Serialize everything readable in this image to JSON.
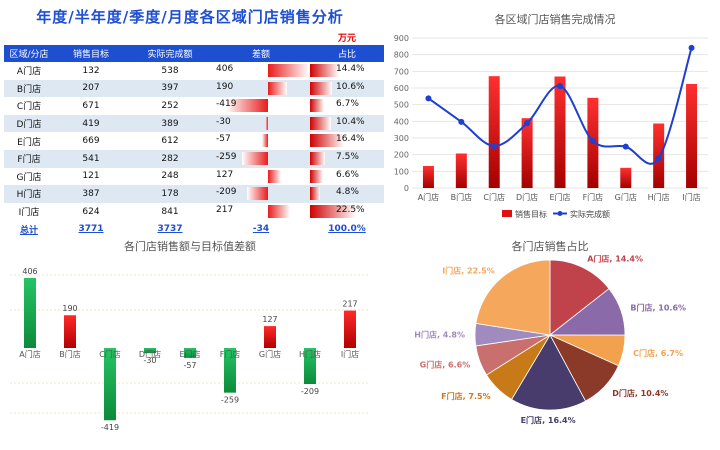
{
  "title": "年度/半年度/季度/月度各区域门店销售分析",
  "unit": "万元",
  "table": {
    "headers": [
      "区域/分店",
      "销售目标",
      "实际完成额",
      "差额",
      "占比"
    ],
    "rows": [
      {
        "store": "A门店",
        "target": "132",
        "actual": "538",
        "diff": "406",
        "share": "14.4%"
      },
      {
        "store": "B门店",
        "target": "207",
        "actual": "397",
        "diff": "190",
        "share": "10.6%"
      },
      {
        "store": "C门店",
        "target": "671",
        "actual": "252",
        "diff": "-419",
        "share": "6.7%"
      },
      {
        "store": "D门店",
        "target": "419",
        "actual": "389",
        "diff": "-30",
        "share": "10.4%"
      },
      {
        "store": "E门店",
        "target": "669",
        "actual": "612",
        "diff": "-57",
        "share": "16.4%"
      },
      {
        "store": "F门店",
        "target": "541",
        "actual": "282",
        "diff": "-259",
        "share": "7.5%"
      },
      {
        "store": "G门店",
        "target": "121",
        "actual": "248",
        "diff": "127",
        "share": "6.6%"
      },
      {
        "store": "H门店",
        "target": "387",
        "actual": "178",
        "diff": "-209",
        "share": "4.8%"
      },
      {
        "store": "I门店",
        "target": "624",
        "actual": "841",
        "diff": "217",
        "share": "22.5%"
      }
    ],
    "total": {
      "label": "总计",
      "target": "3771",
      "actual": "3737",
      "diff": "-34",
      "share": "100.0%"
    }
  },
  "colors": {
    "header": "#1f4fd1",
    "bar_red": "#e01010",
    "bar_green": "#16b050",
    "line": "#1f3fd0"
  },
  "chart_data": [
    {
      "type": "bar",
      "title": "各区域门店销售完成情况",
      "categories": [
        "A门店",
        "B门店",
        "C门店",
        "D门店",
        "E门店",
        "F门店",
        "G门店",
        "H门店",
        "I门店"
      ],
      "series": [
        {
          "name": "销售目标",
          "type": "bar",
          "values": [
            132,
            207,
            671,
            419,
            669,
            541,
            121,
            387,
            624
          ]
        },
        {
          "name": "实际完成额",
          "type": "line",
          "values": [
            538,
            397,
            252,
            389,
            612,
            282,
            248,
            178,
            841
          ]
        }
      ],
      "ylim": [
        0,
        900
      ],
      "yticks": [
        0,
        100,
        200,
        300,
        400,
        500,
        600,
        700,
        800,
        900
      ],
      "legend": "bottom",
      "grid": true
    },
    {
      "type": "bar",
      "title": "各门店销售额与目标值差额",
      "categories": [
        "A门店",
        "B门店",
        "C门店",
        "D门店",
        "E门店",
        "F门店",
        "G门店",
        "H门店",
        "I门店"
      ],
      "values": [
        406,
        190,
        -419,
        -30,
        -57,
        -259,
        127,
        -209,
        217
      ]
    },
    {
      "type": "pie",
      "title": "各门店销售占比",
      "labels": [
        "A门店",
        "B门店",
        "C门店",
        "D门店",
        "E门店",
        "F门店",
        "G门店",
        "H门店",
        "I门店"
      ],
      "values": [
        14.4,
        10.6,
        6.7,
        10.4,
        16.4,
        7.5,
        6.6,
        4.8,
        22.5
      ],
      "colors": [
        "#c0434b",
        "#8a6aa8",
        "#f2a24e",
        "#8b3a2a",
        "#473c6b",
        "#c97a18",
        "#c9706e",
        "#a08bbf",
        "#f5a85c"
      ]
    }
  ]
}
